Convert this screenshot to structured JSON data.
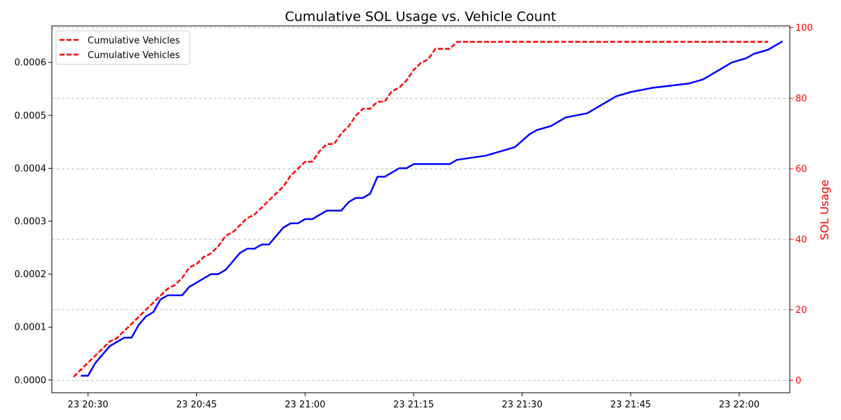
{
  "chart_data": {
    "type": "line",
    "title": "Cumulative SOL Usage vs. Vehicle Count",
    "ylabel_left": "",
    "ylabel_right": "SOL Usage",
    "xlim": [
      "2025-01-23T20:25",
      "2025-01-23T22:07"
    ],
    "ylim_left": [
      -2.4e-05,
      0.000669
    ],
    "ylim_right": [
      -3.5,
      100.5
    ],
    "x_ticks": [
      {
        "t": "2025-01-23T20:30",
        "label": "23 20:30"
      },
      {
        "t": "2025-01-23T20:45",
        "label": "23 20:45"
      },
      {
        "t": "2025-01-23T21:00",
        "label": "23 21:00"
      },
      {
        "t": "2025-01-23T21:15",
        "label": "23 21:15"
      },
      {
        "t": "2025-01-23T21:30",
        "label": "23 21:30"
      },
      {
        "t": "2025-01-23T21:45",
        "label": "23 21:45"
      },
      {
        "t": "2025-01-23T22:00",
        "label": "23 22:00"
      }
    ],
    "y_ticks_left": [
      "0.0000",
      "0.0001",
      "0.0002",
      "0.0003",
      "0.0004",
      "0.0005",
      "0.0006"
    ],
    "y_ticks_right": [
      0,
      20,
      40,
      60,
      80,
      100
    ],
    "grid": "horizontal-dashed",
    "legend_position": "top-left",
    "legend": [
      "Cumulative Vehicles",
      "Cumulative Vehicles"
    ],
    "series": [
      {
        "name": "Cumulative Vehicles",
        "axis": "right",
        "color": "#ff0000",
        "style": "dashed",
        "points": [
          [
            "2025-01-23T20:28",
            1
          ],
          [
            "2025-01-23T20:29",
            3
          ],
          [
            "2025-01-23T20:30",
            5
          ],
          [
            "2025-01-23T20:31",
            7
          ],
          [
            "2025-01-23T20:32",
            9
          ],
          [
            "2025-01-23T20:33",
            11
          ],
          [
            "2025-01-23T20:34",
            12
          ],
          [
            "2025-01-23T20:35",
            14
          ],
          [
            "2025-01-23T20:36",
            16
          ],
          [
            "2025-01-23T20:37",
            18
          ],
          [
            "2025-01-23T20:38",
            20
          ],
          [
            "2025-01-23T20:39",
            22
          ],
          [
            "2025-01-23T20:40",
            24
          ],
          [
            "2025-01-23T20:41",
            26
          ],
          [
            "2025-01-23T20:42",
            27
          ],
          [
            "2025-01-23T20:43",
            29
          ],
          [
            "2025-01-23T20:44",
            32
          ],
          [
            "2025-01-23T20:45",
            33
          ],
          [
            "2025-01-23T20:46",
            35
          ],
          [
            "2025-01-23T20:47",
            36
          ],
          [
            "2025-01-23T20:48",
            38
          ],
          [
            "2025-01-23T20:49",
            41
          ],
          [
            "2025-01-23T20:50",
            42
          ],
          [
            "2025-01-23T20:51",
            44
          ],
          [
            "2025-01-23T20:52",
            46
          ],
          [
            "2025-01-23T20:53",
            47
          ],
          [
            "2025-01-23T20:54",
            49
          ],
          [
            "2025-01-23T20:55",
            51
          ],
          [
            "2025-01-23T20:56",
            53
          ],
          [
            "2025-01-23T20:57",
            55
          ],
          [
            "2025-01-23T20:58",
            58
          ],
          [
            "2025-01-23T20:59",
            60
          ],
          [
            "2025-01-23T21:00",
            62
          ],
          [
            "2025-01-23T21:01",
            62
          ],
          [
            "2025-01-23T21:02",
            65
          ],
          [
            "2025-01-23T21:03",
            67
          ],
          [
            "2025-01-23T21:04",
            67
          ],
          [
            "2025-01-23T21:05",
            70
          ],
          [
            "2025-01-23T21:06",
            72
          ],
          [
            "2025-01-23T21:07",
            75
          ],
          [
            "2025-01-23T21:08",
            77
          ],
          [
            "2025-01-23T21:09",
            77
          ],
          [
            "2025-01-23T21:10",
            79
          ],
          [
            "2025-01-23T21:11",
            79
          ],
          [
            "2025-01-23T21:12",
            82
          ],
          [
            "2025-01-23T21:13",
            83
          ],
          [
            "2025-01-23T21:14",
            85
          ],
          [
            "2025-01-23T21:15",
            88
          ],
          [
            "2025-01-23T21:16",
            90
          ],
          [
            "2025-01-23T21:17",
            91
          ],
          [
            "2025-01-23T21:18",
            94
          ],
          [
            "2025-01-23T21:19",
            94
          ],
          [
            "2025-01-23T21:20",
            94
          ],
          [
            "2025-01-23T21:21",
            96
          ],
          [
            "2025-01-23T21:30",
            96
          ],
          [
            "2025-01-23T21:45",
            96
          ],
          [
            "2025-01-23T22:00",
            96
          ],
          [
            "2025-01-23T22:04",
            96
          ]
        ]
      },
      {
        "name": "",
        "axis": "left",
        "color": "#0000ff",
        "style": "solid",
        "points": [
          [
            "2025-01-23T20:29",
            8e-06
          ],
          [
            "2025-01-23T20:30",
            8e-06
          ],
          [
            "2025-01-23T20:31",
            3.2e-05
          ],
          [
            "2025-01-23T20:33",
            6.4e-05
          ],
          [
            "2025-01-23T20:35",
            8e-05
          ],
          [
            "2025-01-23T20:36",
            8e-05
          ],
          [
            "2025-01-23T20:37",
            0.000104
          ],
          [
            "2025-01-23T20:38",
            0.00012
          ],
          [
            "2025-01-23T20:39",
            0.000128
          ],
          [
            "2025-01-23T20:40",
            0.000152
          ],
          [
            "2025-01-23T20:41",
            0.00016
          ],
          [
            "2025-01-23T20:43",
            0.00016
          ],
          [
            "2025-01-23T20:44",
            0.000176
          ],
          [
            "2025-01-23T20:47",
            0.0002
          ],
          [
            "2025-01-23T20:48",
            0.0002
          ],
          [
            "2025-01-23T20:49",
            0.000208
          ],
          [
            "2025-01-23T20:50",
            0.000224
          ],
          [
            "2025-01-23T20:51",
            0.00024
          ],
          [
            "2025-01-23T20:52",
            0.000248
          ],
          [
            "2025-01-23T20:53",
            0.000248
          ],
          [
            "2025-01-23T20:54",
            0.000256
          ],
          [
            "2025-01-23T20:55",
            0.000256
          ],
          [
            "2025-01-23T20:56",
            0.000272
          ],
          [
            "2025-01-23T20:57",
            0.000288
          ],
          [
            "2025-01-23T20:58",
            0.000296
          ],
          [
            "2025-01-23T20:59",
            0.000296
          ],
          [
            "2025-01-23T21:00",
            0.000304
          ],
          [
            "2025-01-23T21:01",
            0.000304
          ],
          [
            "2025-01-23T21:03",
            0.00032
          ],
          [
            "2025-01-23T21:05",
            0.00032
          ],
          [
            "2025-01-23T21:06",
            0.000336
          ],
          [
            "2025-01-23T21:07",
            0.000344
          ],
          [
            "2025-01-23T21:08",
            0.000344
          ],
          [
            "2025-01-23T21:09",
            0.000352
          ],
          [
            "2025-01-23T21:10",
            0.000384
          ],
          [
            "2025-01-23T21:11",
            0.000384
          ],
          [
            "2025-01-23T21:13",
            0.0004
          ],
          [
            "2025-01-23T21:14",
            0.0004
          ],
          [
            "2025-01-23T21:15",
            0.000408
          ],
          [
            "2025-01-23T21:20",
            0.000408
          ],
          [
            "2025-01-23T21:21",
            0.000416
          ],
          [
            "2025-01-23T21:25",
            0.000424
          ],
          [
            "2025-01-23T21:29",
            0.00044
          ],
          [
            "2025-01-23T21:31",
            0.000464
          ],
          [
            "2025-01-23T21:32",
            0.000472
          ],
          [
            "2025-01-23T21:34",
            0.00048
          ],
          [
            "2025-01-23T21:36",
            0.000496
          ],
          [
            "2025-01-23T21:39",
            0.000504
          ],
          [
            "2025-01-23T21:43",
            0.000536
          ],
          [
            "2025-01-23T21:45",
            0.000544
          ],
          [
            "2025-01-23T21:48",
            0.000552
          ],
          [
            "2025-01-23T21:53",
            0.00056
          ],
          [
            "2025-01-23T21:55",
            0.000568
          ],
          [
            "2025-01-23T21:57",
            0.000584
          ],
          [
            "2025-01-23T21:59",
            0.0006
          ],
          [
            "2025-01-23T22:01",
            0.000608
          ],
          [
            "2025-01-23T22:02",
            0.000616
          ],
          [
            "2025-01-23T22:04",
            0.000624
          ],
          [
            "2025-01-23T22:06",
            0.00064
          ]
        ]
      }
    ]
  }
}
